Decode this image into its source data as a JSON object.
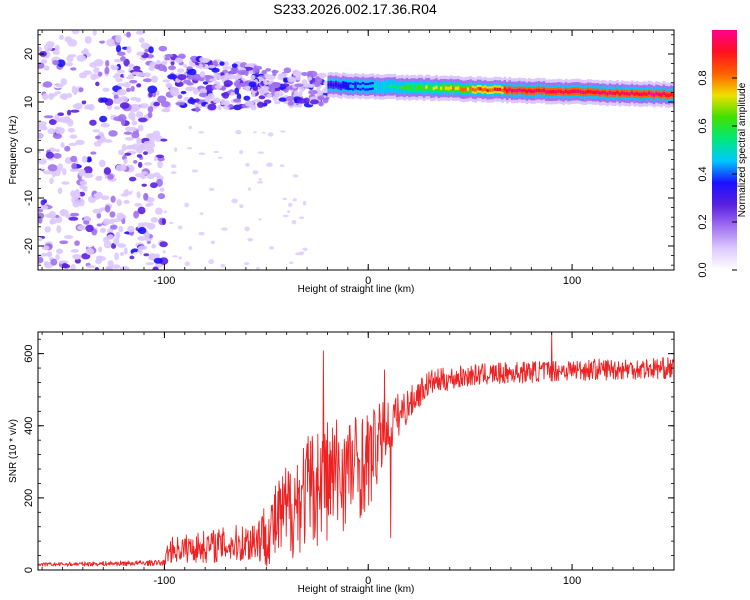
{
  "figure": {
    "title": "S233.2026.002.17.36.R04"
  },
  "chart_data": [
    {
      "type": "heatmap",
      "description_of_content": "Spectrogram of normalized spectral amplitude vs height and frequency",
      "xlabel": "Height of straight line (km)",
      "ylabel": "Frequency (Hz)",
      "xlim": [
        -162,
        150
      ],
      "ylim": [
        -25,
        25
      ],
      "xticks": [
        -100,
        0,
        100
      ],
      "xtick_labels": [
        "-100",
        "0",
        "100"
      ],
      "yticks": [
        -20,
        -10,
        0,
        10,
        20
      ],
      "ytick_labels": [
        "-20",
        "-10",
        "0",
        "10",
        "20"
      ],
      "colorbar": {
        "label": "Normalized spectral amplitude",
        "range": [
          0,
          1
        ],
        "ticks": [
          0.0,
          0.2,
          0.4,
          0.6,
          0.8
        ],
        "tick_labels": [
          "0.0",
          "0.2",
          "0.4",
          "0.6",
          "0.8"
        ],
        "colormap": [
          "#ffffff",
          "#dcc8ff",
          "#a070f0",
          "#5a20e0",
          "#1a10ff",
          "#00c8ff",
          "#00e87a",
          "#40e000",
          "#f0e000",
          "#ff6000",
          "#ff1020",
          "#ff0090"
        ]
      },
      "features": [
        {
          "name": "noise region",
          "x_range": [
            -162,
            -100
          ],
          "freq_range": [
            -25,
            25
          ],
          "amplitude": 0.12
        },
        {
          "name": "scattered band",
          "x_range": [
            -100,
            -20
          ],
          "freq_range": [
            5,
            24
          ],
          "amplitude": 0.3
        },
        {
          "name": "coherent tone",
          "x_range": [
            -20,
            150
          ],
          "freq_start": 13.5,
          "freq_end": 11.5,
          "amplitude": 0.85
        }
      ]
    },
    {
      "type": "line",
      "xlabel": "Height of straight line (km)",
      "ylabel": "SNR (10 * v/v)",
      "xlim": [
        -162,
        150
      ],
      "ylim": [
        0,
        660
      ],
      "xticks": [
        -100,
        0,
        100
      ],
      "xtick_labels": [
        "-100",
        "0",
        "100"
      ],
      "yticks": [
        0,
        200,
        400,
        600
      ],
      "ytick_labels": [
        "0",
        "200",
        "400",
        "600"
      ],
      "series": [
        {
          "name": "SNR",
          "color": "#ee2222",
          "envelope_x": [
            -162,
            -100,
            -98,
            -80,
            -60,
            -50,
            -40,
            -30,
            -20,
            -10,
            0,
            10,
            20,
            30,
            50,
            80,
            100,
            150
          ],
          "envelope_mean": [
            15,
            20,
            55,
            65,
            75,
            100,
            160,
            220,
            250,
            280,
            300,
            400,
            460,
            520,
            540,
            550,
            555,
            560
          ],
          "envelope_noise": [
            5,
            8,
            35,
            45,
            55,
            90,
            140,
            160,
            180,
            160,
            140,
            80,
            45,
            35,
            30,
            30,
            30,
            30
          ],
          "spikes": [
            {
              "x": -22,
              "y": 608
            },
            {
              "x": 8,
              "y": 555
            },
            {
              "x": 11,
              "y": 90
            },
            {
              "x": 90,
              "y": 660
            }
          ]
        }
      ]
    }
  ]
}
